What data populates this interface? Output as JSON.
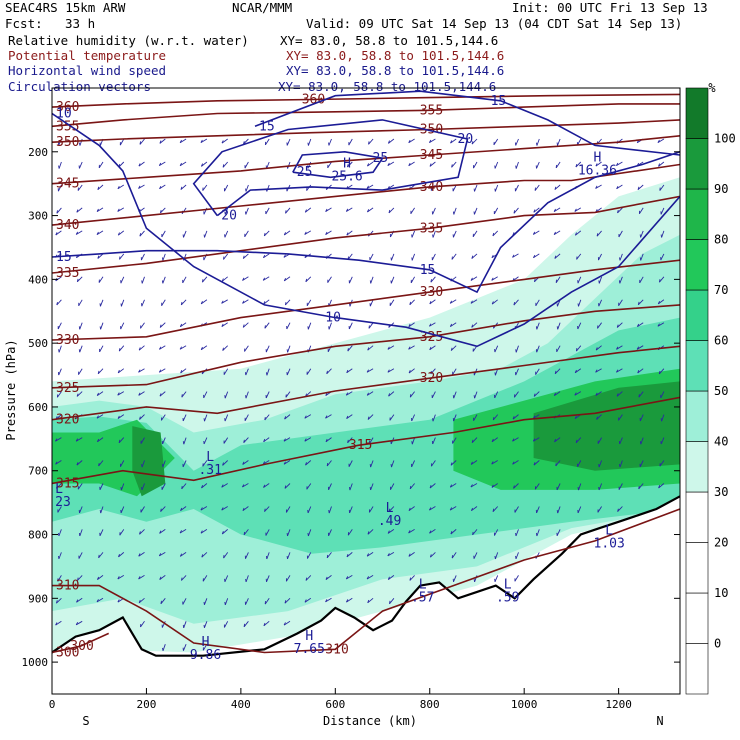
{
  "header": {
    "model": "SEAC4RS 15km ARW",
    "org": "NCAR/MMM",
    "init": "Init: 00 UTC Fri 13 Sep 13",
    "fcst_label": "Fcst:",
    "fcst_value": "33 h",
    "valid": "Valid: 09 UTC Sat 14 Sep 13 (04 CDT Sat 14 Sep 13)",
    "fields": [
      {
        "name": "Relative humidity (w.r.t. water)",
        "xy": "XY=  83.0, 58.8 to 101.5,144.6",
        "color": "#000000"
      },
      {
        "name": "Potential temperature",
        "xy": "XY=  83.0, 58.8 to 101.5,144.6",
        "color": "#8b1a1a"
      },
      {
        "name": "Horizontal wind speed",
        "xy": "XY=  83.0, 58.8 to 101.5,144.6",
        "color": "#1a1a8c"
      },
      {
        "name": "Circulation vectors",
        "xy": "XY=  83.0, 58.8 to 101.5,144.6",
        "color": "#1a1a8c"
      }
    ]
  },
  "colors": {
    "theta": "#7a1515",
    "wind": "#1c1c96",
    "vectors": "#2a2aa0",
    "terrain": "#000000",
    "rh_scale": [
      "#ffffff",
      "#ffffff",
      "#ffffff",
      "#ffffff",
      "#cef7ea",
      "#9eefd8",
      "#5ee0b6",
      "#34d18a",
      "#22c85a",
      "#1fb64a",
      "#1a9a3c",
      "#127a2a"
    ]
  },
  "chart_data": {
    "type": "contour-cross-section",
    "xlabel": "Distance (km)",
    "ylabel": "Pressure (hPa)",
    "x_ticks": [
      0,
      200,
      400,
      600,
      800,
      1000,
      1200
    ],
    "xlim": [
      0,
      1330
    ],
    "y_ticks": [
      200,
      300,
      400,
      500,
      600,
      700,
      800,
      900,
      1000
    ],
    "ylim": [
      1050,
      100
    ],
    "x_end_labels": {
      "left": "S",
      "right": "N"
    },
    "colorbar": {
      "unit": "%",
      "ticks": [
        0,
        10,
        20,
        30,
        40,
        50,
        60,
        70,
        80,
        90,
        100
      ]
    },
    "theta_contours": [
      {
        "label": "360",
        "pts": [
          [
            0,
            130
          ],
          [
            150,
            125
          ],
          [
            350,
            120
          ],
          [
            550,
            118
          ],
          [
            800,
            115
          ],
          [
            1050,
            112
          ],
          [
            1330,
            110
          ]
        ]
      },
      {
        "label": "355",
        "pts": [
          [
            0,
            160
          ],
          [
            150,
            150
          ],
          [
            350,
            140
          ],
          [
            550,
            138
          ],
          [
            800,
            135
          ],
          [
            1000,
            130
          ],
          [
            1200,
            125
          ],
          [
            1330,
            125
          ]
        ]
      },
      {
        "label": "350",
        "pts": [
          [
            0,
            185
          ],
          [
            150,
            180
          ],
          [
            350,
            175
          ],
          [
            550,
            170
          ],
          [
            800,
            165
          ],
          [
            1000,
            160
          ],
          [
            1200,
            155
          ],
          [
            1330,
            150
          ]
        ]
      },
      {
        "label": "345",
        "pts": [
          [
            0,
            250
          ],
          [
            200,
            240
          ],
          [
            400,
            230
          ],
          [
            600,
            215
          ],
          [
            800,
            205
          ],
          [
            1000,
            195
          ],
          [
            1200,
            185
          ],
          [
            1330,
            175
          ]
        ]
      },
      {
        "label": "340",
        "pts": [
          [
            0,
            315
          ],
          [
            200,
            300
          ],
          [
            400,
            285
          ],
          [
            600,
            270
          ],
          [
            800,
            255
          ],
          [
            1000,
            245
          ],
          [
            1100,
            245
          ],
          [
            1330,
            220
          ]
        ]
      },
      {
        "label": "335",
        "pts": [
          [
            0,
            390
          ],
          [
            200,
            375
          ],
          [
            400,
            355
          ],
          [
            600,
            335
          ],
          [
            800,
            320
          ],
          [
            1000,
            300
          ],
          [
            1150,
            295
          ],
          [
            1330,
            270
          ]
        ]
      },
      {
        "label": "330",
        "pts": [
          [
            0,
            495
          ],
          [
            200,
            490
          ],
          [
            400,
            460
          ],
          [
            600,
            440
          ],
          [
            800,
            420
          ],
          [
            1000,
            400
          ],
          [
            1150,
            385
          ],
          [
            1330,
            370
          ]
        ]
      },
      {
        "label": "325",
        "pts": [
          [
            0,
            570
          ],
          [
            200,
            565
          ],
          [
            400,
            530
          ],
          [
            600,
            505
          ],
          [
            800,
            490
          ],
          [
            1000,
            465
          ],
          [
            1150,
            450
          ],
          [
            1330,
            440
          ]
        ]
      },
      {
        "label": "320",
        "pts": [
          [
            0,
            620
          ],
          [
            200,
            600
          ],
          [
            350,
            610
          ],
          [
            600,
            575
          ],
          [
            800,
            555
          ],
          [
            1000,
            535
          ],
          [
            1200,
            515
          ],
          [
            1330,
            505
          ]
        ]
      },
      {
        "label": "315",
        "pts": [
          [
            0,
            720
          ],
          [
            150,
            700
          ],
          [
            300,
            715
          ],
          [
            450,
            690
          ],
          [
            650,
            660
          ],
          [
            850,
            640
          ],
          [
            1000,
            620
          ],
          [
            1150,
            610
          ],
          [
            1330,
            585
          ]
        ]
      },
      {
        "label": "310",
        "pts": [
          [
            0,
            880
          ],
          [
            100,
            880
          ],
          [
            200,
            920
          ],
          [
            300,
            970
          ],
          [
            450,
            985
          ],
          [
            600,
            980
          ],
          [
            700,
            920
          ],
          [
            850,
            880
          ],
          [
            1000,
            840
          ],
          [
            1150,
            810
          ],
          [
            1330,
            760
          ]
        ]
      },
      {
        "label": "300",
        "pts": [
          [
            0,
            985
          ],
          [
            60,
            975
          ],
          [
            120,
            955
          ]
        ]
      }
    ],
    "wind_contours": [
      {
        "label": "10",
        "pts": [
          [
            0,
            140
          ],
          [
            100,
            190
          ],
          [
            150,
            230
          ],
          [
            200,
            320
          ],
          [
            300,
            380
          ],
          [
            450,
            440
          ],
          [
            600,
            460
          ],
          [
            750,
            475
          ],
          [
            900,
            505
          ],
          [
            1000,
            470
          ],
          [
            1100,
            420
          ],
          [
            1200,
            380
          ],
          [
            1330,
            270
          ]
        ]
      },
      {
        "label": "15",
        "pts": [
          [
            0,
            365
          ],
          [
            100,
            360
          ],
          [
            200,
            355
          ],
          [
            350,
            355
          ],
          [
            500,
            360
          ],
          [
            650,
            370
          ],
          [
            800,
            385
          ],
          [
            900,
            420
          ],
          [
            950,
            350
          ],
          [
            1050,
            280
          ],
          [
            1150,
            240
          ],
          [
            1250,
            220
          ],
          [
            1330,
            200
          ]
        ]
      },
      {
        "label": "20",
        "pts": [
          [
            350,
            300
          ],
          [
            300,
            250
          ],
          [
            360,
            200
          ],
          [
            500,
            165
          ],
          [
            700,
            150
          ],
          [
            880,
            180
          ],
          [
            860,
            240
          ],
          [
            700,
            260
          ],
          [
            550,
            255
          ],
          [
            420,
            260
          ],
          [
            350,
            300
          ]
        ]
      },
      {
        "label": "25",
        "pts": [
          [
            510,
            232
          ],
          [
            530,
            205
          ],
          [
            620,
            200
          ],
          [
            700,
            210
          ],
          [
            680,
            232
          ],
          [
            590,
            240
          ],
          [
            510,
            232
          ]
        ]
      },
      {
        "label": "15",
        "pts": [
          [
            430,
            160
          ],
          [
            600,
            112
          ],
          [
            780,
            105
          ],
          [
            950,
            120
          ],
          [
            1050,
            150
          ],
          [
            1150,
            190
          ],
          [
            1330,
            205
          ]
        ]
      }
    ],
    "extrema": [
      {
        "sym": "H",
        "val": "25.6",
        "x": 625,
        "p": 225,
        "color": "#1c1c96"
      },
      {
        "sym": "H",
        "val": "16.36",
        "x": 1155,
        "p": 215,
        "color": "#1c1c96"
      },
      {
        "sym": "L",
        "val": ".31",
        "x": 335,
        "p": 685,
        "color": "#1c1c96"
      },
      {
        "sym": "L",
        "val": ".23",
        "x": 15,
        "p": 735,
        "color": "#1c1c96"
      },
      {
        "sym": "L",
        "val": ".49",
        "x": 715,
        "p": 765,
        "color": "#1c1c96"
      },
      {
        "sym": "L",
        "val": ".57",
        "x": 785,
        "p": 885,
        "color": "#1c1c96"
      },
      {
        "sym": "L",
        "val": ".59",
        "x": 965,
        "p": 885,
        "color": "#1c1c96"
      },
      {
        "sym": "L",
        "val": "1.03",
        "x": 1180,
        "p": 800,
        "color": "#1c1c96"
      },
      {
        "sym": "H",
        "val": "9.86",
        "x": 325,
        "p": 975,
        "color": "#1c1c96"
      },
      {
        "sym": "H",
        "val": "7.65",
        "x": 545,
        "p": 965,
        "color": "#1c1c96"
      }
    ],
    "terrain": [
      [
        0,
        985
      ],
      [
        50,
        960
      ],
      [
        100,
        950
      ],
      [
        150,
        930
      ],
      [
        190,
        980
      ],
      [
        220,
        990
      ],
      [
        320,
        990
      ],
      [
        450,
        980
      ],
      [
        520,
        955
      ],
      [
        570,
        935
      ],
      [
        600,
        915
      ],
      [
        640,
        930
      ],
      [
        680,
        950
      ],
      [
        720,
        935
      ],
      [
        750,
        905
      ],
      [
        780,
        880
      ],
      [
        820,
        875
      ],
      [
        860,
        900
      ],
      [
        900,
        890
      ],
      [
        940,
        880
      ],
      [
        980,
        900
      ],
      [
        1020,
        870
      ],
      [
        1080,
        830
      ],
      [
        1120,
        800
      ],
      [
        1160,
        790
      ],
      [
        1200,
        780
      ],
      [
        1240,
        770
      ],
      [
        1280,
        760
      ],
      [
        1330,
        740
      ]
    ],
    "rh_regions": [
      {
        "level": 30,
        "pts": [
          [
            0,
            560
          ],
          [
            200,
            550
          ],
          [
            400,
            540
          ],
          [
            600,
            500
          ],
          [
            800,
            460
          ],
          [
            1000,
            400
          ],
          [
            1100,
            330
          ],
          [
            1200,
            270
          ],
          [
            1330,
            240
          ],
          [
            1330,
            760
          ],
          [
            1100,
            800
          ],
          [
            900,
            880
          ],
          [
            700,
            920
          ],
          [
            500,
            960
          ],
          [
            300,
            985
          ],
          [
            100,
            980
          ],
          [
            0,
            1000
          ]
        ]
      },
      {
        "level": 40,
        "pts": [
          [
            0,
            600
          ],
          [
            100,
            590
          ],
          [
            200,
            600
          ],
          [
            300,
            640
          ],
          [
            450,
            620
          ],
          [
            600,
            580
          ],
          [
            800,
            560
          ],
          [
            950,
            540
          ],
          [
            1050,
            500
          ],
          [
            1150,
            430
          ],
          [
            1250,
            360
          ],
          [
            1330,
            330
          ],
          [
            1330,
            760
          ],
          [
            1100,
            790
          ],
          [
            900,
            850
          ],
          [
            700,
            870
          ],
          [
            500,
            920
          ],
          [
            300,
            940
          ],
          [
            150,
            900
          ],
          [
            0,
            920
          ]
        ]
      },
      {
        "level": 50,
        "pts": [
          [
            0,
            620
          ],
          [
            100,
            615
          ],
          [
            200,
            625
          ],
          [
            300,
            700
          ],
          [
            400,
            660
          ],
          [
            600,
            640
          ],
          [
            800,
            620
          ],
          [
            1000,
            560
          ],
          [
            1100,
            520
          ],
          [
            1200,
            480
          ],
          [
            1330,
            460
          ],
          [
            1330,
            760
          ],
          [
            1100,
            780
          ],
          [
            900,
            800
          ],
          [
            700,
            820
          ],
          [
            550,
            830
          ],
          [
            400,
            800
          ],
          [
            300,
            760
          ],
          [
            200,
            780
          ],
          [
            100,
            760
          ],
          [
            0,
            780
          ]
        ]
      },
      {
        "level": 70,
        "pts": [
          [
            0,
            640
          ],
          [
            100,
            640
          ],
          [
            180,
            620
          ],
          [
            260,
            680
          ],
          [
            180,
            740
          ],
          [
            100,
            720
          ],
          [
            0,
            720
          ]
        ]
      },
      {
        "level": 70,
        "pts": [
          [
            850,
            620
          ],
          [
            1000,
            590
          ],
          [
            1150,
            560
          ],
          [
            1330,
            540
          ],
          [
            1330,
            720
          ],
          [
            1150,
            730
          ],
          [
            950,
            730
          ],
          [
            850,
            700
          ]
        ]
      },
      {
        "level": 90,
        "pts": [
          [
            170,
            630
          ],
          [
            230,
            640
          ],
          [
            240,
            720
          ],
          [
            190,
            740
          ],
          [
            170,
            700
          ]
        ]
      },
      {
        "level": 90,
        "pts": [
          [
            1020,
            610
          ],
          [
            1200,
            570
          ],
          [
            1330,
            560
          ],
          [
            1330,
            690
          ],
          [
            1150,
            700
          ],
          [
            1020,
            680
          ]
        ]
      }
    ]
  }
}
